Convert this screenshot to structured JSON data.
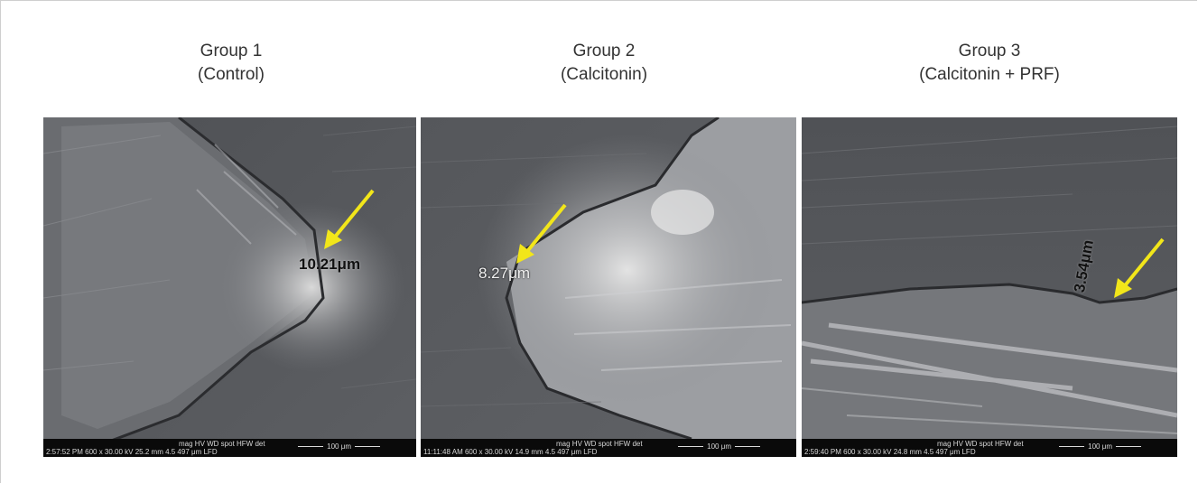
{
  "colors": {
    "arrow": "#f2e61a",
    "background": "#ffffff",
    "sem_gray": "#5a5c60"
  },
  "groups": [
    {
      "title": "Group 1",
      "subtitle": "(Control)",
      "measurement": "10.21μm",
      "databar": {
        "header": "mag    HV    WD   spot  HFW  det",
        "values": "2:57:52 PM 600 x 30.00 kV 25.2 mm  4.5  497 μm LFD",
        "scale": "100 μm"
      }
    },
    {
      "title": "Group 2",
      "subtitle": "(Calcitonin)",
      "measurement": "8.27μm",
      "databar": {
        "header": "mag    HV    WD   spot  HFW  det",
        "values": "11:11:48 AM 600 x 30.00 kV 14.9 mm  4.5  497 μm LFD",
        "scale": "100 μm"
      }
    },
    {
      "title": "Group 3",
      "subtitle": "(Calcitonin + PRF)",
      "measurement": "3.54μm",
      "databar": {
        "header": "mag    HV    WD   spot  HFW  det",
        "values": "2:59:40 PM 600 x 30.00 kV 24.8 mm  4.5  497 μm LFD",
        "scale": "100 μm"
      }
    }
  ]
}
